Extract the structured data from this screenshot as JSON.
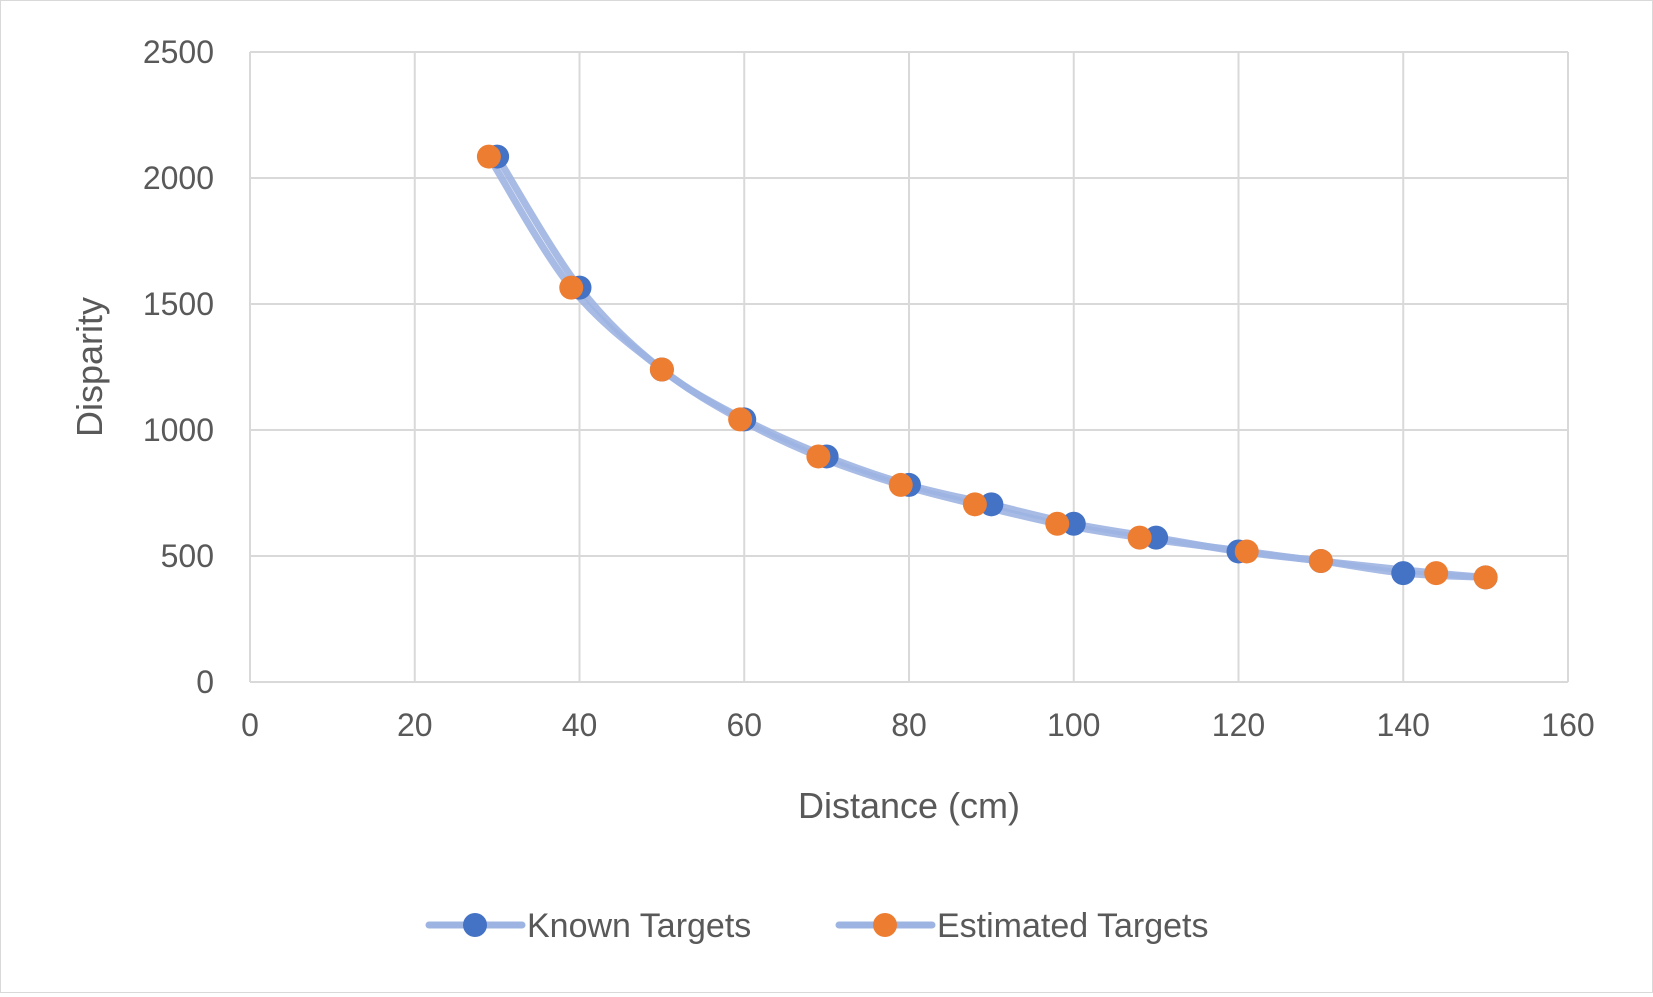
{
  "chart_data": {
    "type": "scatter",
    "title": "",
    "xlabel": "Distance (cm)",
    "ylabel": "Disparity",
    "xlim": [
      0,
      160
    ],
    "ylim": [
      0,
      2500
    ],
    "xticks": [
      0,
      20,
      40,
      60,
      80,
      100,
      120,
      140,
      160
    ],
    "yticks": [
      0,
      500,
      1000,
      1500,
      2000,
      2500
    ],
    "grid": true,
    "legend_position": "bottom",
    "series": [
      {
        "name": "Known Targets",
        "marker_color": "#4472c4",
        "line_color": "#9db4e2",
        "smooth_line": true,
        "points": [
          [
            30,
            2085
          ],
          [
            40,
            1565
          ],
          [
            50,
            1240
          ],
          [
            60,
            1042
          ],
          [
            70,
            895
          ],
          [
            80,
            782
          ],
          [
            90,
            705
          ],
          [
            100,
            628
          ],
          [
            110,
            573
          ],
          [
            120,
            518
          ],
          [
            130,
            480
          ],
          [
            140,
            432
          ],
          [
            150,
            415
          ]
        ]
      },
      {
        "name": "Estimated Targets",
        "marker_color": "#ed7d31",
        "line_color": "#9db4e2",
        "smooth_line": true,
        "points": [
          [
            29,
            2085
          ],
          [
            39,
            1565
          ],
          [
            50,
            1240
          ],
          [
            59.5,
            1042
          ],
          [
            69,
            895
          ],
          [
            79,
            782
          ],
          [
            88,
            705
          ],
          [
            98,
            628
          ],
          [
            108,
            573
          ],
          [
            121,
            518
          ],
          [
            130,
            480
          ],
          [
            144,
            432
          ],
          [
            150,
            415
          ]
        ]
      }
    ]
  }
}
